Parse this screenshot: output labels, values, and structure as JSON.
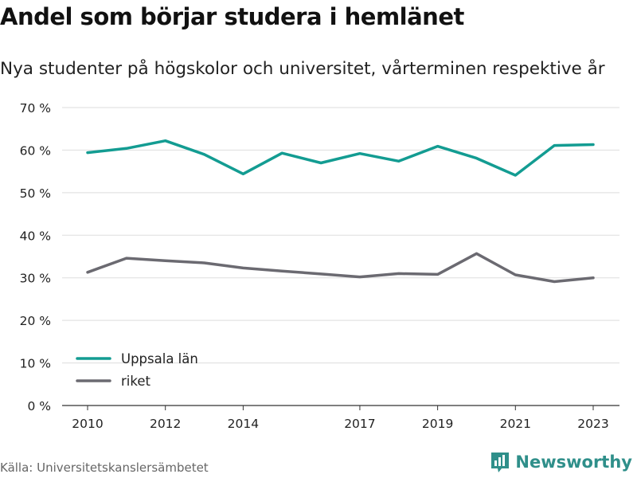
{
  "chart_data": {
    "type": "line",
    "title": "Andel som börjar studera i hemlänet",
    "subtitle": "Nya studenter på högskolor och universitet, vårterminen respektive år",
    "x": [
      2010,
      2011,
      2012,
      2013,
      2014,
      2015,
      2016,
      2017,
      2018,
      2019,
      2020,
      2021,
      2022,
      2023
    ],
    "x_ticks": [
      2010,
      2012,
      2014,
      2017,
      2019,
      2021,
      2023
    ],
    "y_ticks": [
      0,
      10,
      20,
      30,
      40,
      50,
      60,
      70
    ],
    "y_tick_suffix": " %",
    "ylim": [
      0,
      70
    ],
    "grid": "horizontal",
    "legend_position": "bottom-left",
    "series": [
      {
        "name": "Uppsala län",
        "color": "#139c92",
        "values": [
          59.4,
          60.4,
          62.2,
          59.0,
          54.4,
          59.3,
          57.0,
          59.2,
          57.4,
          60.9,
          58.1,
          54.1,
          61.1,
          61.3
        ]
      },
      {
        "name": "riket",
        "color": "#6b6a71",
        "values": [
          31.3,
          34.6,
          34.0,
          33.5,
          32.3,
          31.6,
          30.9,
          30.2,
          31.0,
          30.8,
          35.7,
          30.7,
          29.1,
          30.0
        ]
      }
    ],
    "source": "Källa: Universitetskanslersämbetet"
  },
  "brand": {
    "name": "Newsworthy",
    "icon": "newsworthy-logo-icon",
    "color": "#2f8f8a"
  },
  "colors": {
    "grid": "#dddddd",
    "axis": "#333333",
    "text": "#222222"
  }
}
